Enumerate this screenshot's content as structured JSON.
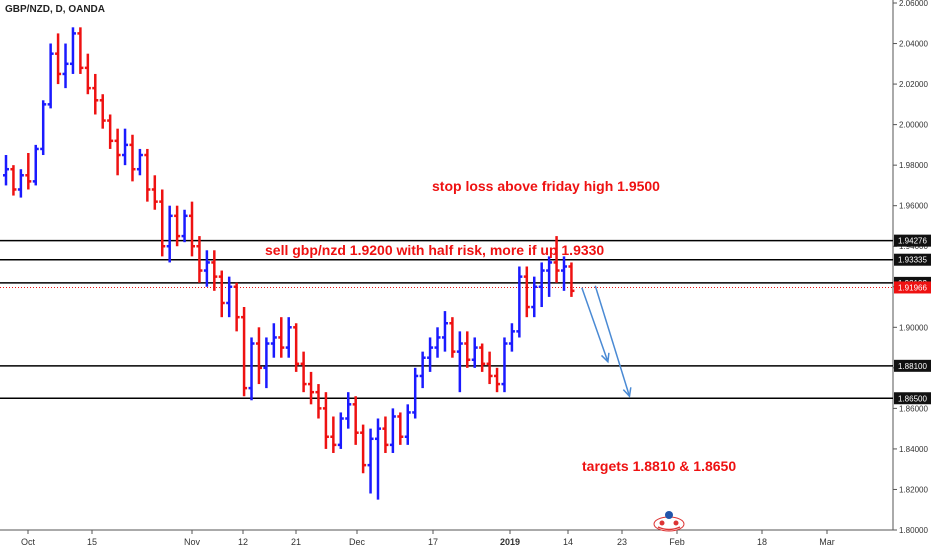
{
  "header": {
    "symbol": "GBP/NZD, D, OANDA"
  },
  "annotations": {
    "stop_loss": "stop loss above friday high 1.9500",
    "sell": "sell gbp/nzd 1.9200 with half risk, more if up 1.9330",
    "targets": "targets 1.8810 & 1.8650"
  },
  "colors": {
    "up": "#1a1aff",
    "down": "#ee1111",
    "arrow": "#4a8ad4",
    "axis_text": "#333333",
    "line": "#000000"
  },
  "chart_data": {
    "type": "bar",
    "subtype": "ohlc",
    "series": [
      {
        "values": [
          [
            1.975,
            1.985,
            1.97,
            1.978
          ],
          [
            1.978,
            1.98,
            1.965,
            1.968
          ],
          [
            1.968,
            1.978,
            1.964,
            1.975
          ],
          [
            1.975,
            1.986,
            1.968,
            1.972
          ],
          [
            1.972,
            1.99,
            1.97,
            1.988
          ],
          [
            1.988,
            2.012,
            1.985,
            2.01
          ],
          [
            2.01,
            2.04,
            2.008,
            2.035
          ],
          [
            2.035,
            2.045,
            2.02,
            2.025
          ],
          [
            2.025,
            2.04,
            2.018,
            2.03
          ],
          [
            2.03,
            2.048,
            2.025,
            2.045
          ],
          [
            2.045,
            2.048,
            2.025,
            2.028
          ],
          [
            2.028,
            2.035,
            2.015,
            2.018
          ],
          [
            2.018,
            2.025,
            2.005,
            2.012
          ],
          [
            2.012,
            2.015,
            1.998,
            2.002
          ],
          [
            2.002,
            2.005,
            1.988,
            1.992
          ],
          [
            1.992,
            1.998,
            1.975,
            1.985
          ],
          [
            1.985,
            1.998,
            1.98,
            1.99
          ],
          [
            1.99,
            1.995,
            1.972,
            1.978
          ],
          [
            1.978,
            1.988,
            1.975,
            1.985
          ],
          [
            1.985,
            1.988,
            1.962,
            1.968
          ],
          [
            1.968,
            1.975,
            1.958,
            1.962
          ],
          [
            1.962,
            1.968,
            1.935,
            1.94
          ],
          [
            1.94,
            1.96,
            1.932,
            1.955
          ],
          [
            1.955,
            1.96,
            1.94,
            1.945
          ],
          [
            1.945,
            1.958,
            1.942,
            1.955
          ],
          [
            1.955,
            1.962,
            1.935,
            1.94
          ],
          [
            1.94,
            1.945,
            1.922,
            1.928
          ],
          [
            1.928,
            1.938,
            1.92,
            1.932
          ],
          [
            1.932,
            1.938,
            1.918,
            1.925
          ],
          [
            1.925,
            1.928,
            1.905,
            1.912
          ],
          [
            1.912,
            1.925,
            1.905,
            1.92
          ],
          [
            1.92,
            1.922,
            1.898,
            1.905
          ],
          [
            1.905,
            1.91,
            1.866,
            1.87
          ],
          [
            1.87,
            1.895,
            1.864,
            1.892
          ],
          [
            1.892,
            1.9,
            1.872,
            1.88
          ],
          [
            1.88,
            1.895,
            1.87,
            1.892
          ],
          [
            1.892,
            1.902,
            1.885,
            1.895
          ],
          [
            1.895,
            1.905,
            1.885,
            1.89
          ],
          [
            1.89,
            1.905,
            1.885,
            1.9
          ],
          [
            1.9,
            1.902,
            1.878,
            1.882
          ],
          [
            1.882,
            1.888,
            1.868,
            1.872
          ],
          [
            1.872,
            1.878,
            1.862,
            1.868
          ],
          [
            1.868,
            1.872,
            1.855,
            1.86
          ],
          [
            1.86,
            1.868,
            1.84,
            1.846
          ],
          [
            1.846,
            1.856,
            1.838,
            1.842
          ],
          [
            1.842,
            1.858,
            1.84,
            1.855
          ],
          [
            1.855,
            1.868,
            1.85,
            1.862
          ],
          [
            1.862,
            1.866,
            1.842,
            1.848
          ],
          [
            1.848,
            1.852,
            1.828,
            1.832
          ],
          [
            1.832,
            1.85,
            1.818,
            1.845
          ],
          [
            1.845,
            1.855,
            1.815,
            1.85
          ],
          [
            1.85,
            1.856,
            1.838,
            1.842
          ],
          [
            1.842,
            1.86,
            1.838,
            1.856
          ],
          [
            1.856,
            1.858,
            1.842,
            1.846
          ],
          [
            1.846,
            1.862,
            1.842,
            1.858
          ],
          [
            1.858,
            1.88,
            1.855,
            1.876
          ],
          [
            1.876,
            1.888,
            1.87,
            1.885
          ],
          [
            1.885,
            1.895,
            1.878,
            1.89
          ],
          [
            1.89,
            1.9,
            1.885,
            1.895
          ],
          [
            1.895,
            1.908,
            1.888,
            1.902
          ],
          [
            1.902,
            1.905,
            1.885,
            1.888
          ],
          [
            1.888,
            1.898,
            1.868,
            1.892
          ],
          [
            1.892,
            1.898,
            1.88,
            1.884
          ],
          [
            1.884,
            1.895,
            1.88,
            1.89
          ],
          [
            1.89,
            1.892,
            1.878,
            1.882
          ],
          [
            1.882,
            1.888,
            1.872,
            1.876
          ],
          [
            1.876,
            1.88,
            1.868,
            1.872
          ],
          [
            1.872,
            1.895,
            1.868,
            1.892
          ],
          [
            1.892,
            1.902,
            1.888,
            1.898
          ],
          [
            1.898,
            1.93,
            1.895,
            1.925
          ],
          [
            1.925,
            1.93,
            1.905,
            1.91
          ],
          [
            1.91,
            1.925,
            1.905,
            1.92
          ],
          [
            1.92,
            1.932,
            1.91,
            1.928
          ],
          [
            1.928,
            1.935,
            1.915,
            1.932
          ],
          [
            1.932,
            1.945,
            1.922,
            1.928
          ],
          [
            1.928,
            1.935,
            1.918,
            1.93
          ],
          [
            1.93,
            1.932,
            1.915,
            1.918
          ]
        ]
      }
    ],
    "y_axis": {
      "ticks": [
        "2.06000",
        "2.04000",
        "2.02000",
        "2.00000",
        "1.98000",
        "1.96000",
        "1.94000",
        "1.92000",
        "1.90000",
        "1.88000",
        "1.86000",
        "1.84000",
        "1.82000",
        "1.80000"
      ],
      "range": [
        1.8,
        2.06
      ],
      "position": "right"
    },
    "x_axis": {
      "ticks": [
        "Oct",
        "15",
        "Nov",
        "12",
        "21",
        "Dec",
        "17",
        "2019",
        "14",
        "23",
        "Feb",
        "18",
        "Mar"
      ]
    },
    "price_labels": [
      {
        "label": "1.94276",
        "value": 1.94276,
        "style": "dark"
      },
      {
        "label": "1.93335",
        "value": 1.93335,
        "style": "dark"
      },
      {
        "label": "1.92192",
        "value": 1.92192,
        "style": "dark"
      },
      {
        "label": "1.91966",
        "value": 1.91966,
        "style": "red"
      },
      {
        "label": "1.88100",
        "value": 1.881,
        "style": "dark"
      },
      {
        "label": "1.86500",
        "value": 1.865,
        "style": "dark"
      }
    ],
    "horizontal_lines": [
      {
        "value": 1.94276,
        "style": "solid"
      },
      {
        "value": 1.93335,
        "style": "solid"
      },
      {
        "value": 1.92192,
        "style": "solid"
      },
      {
        "value": 1.91966,
        "style": "dotted-red"
      },
      {
        "value": 1.881,
        "style": "solid"
      },
      {
        "value": 1.865,
        "style": "solid"
      }
    ],
    "projections": [
      {
        "from_bar": 77.4,
        "from_value": 1.9195,
        "to_bar": 80.9,
        "to_value": 1.883
      },
      {
        "from_bar": 79.2,
        "from_value": 1.9205,
        "to_bar": 83.8,
        "to_value": 1.866
      }
    ],
    "grid": false
  }
}
